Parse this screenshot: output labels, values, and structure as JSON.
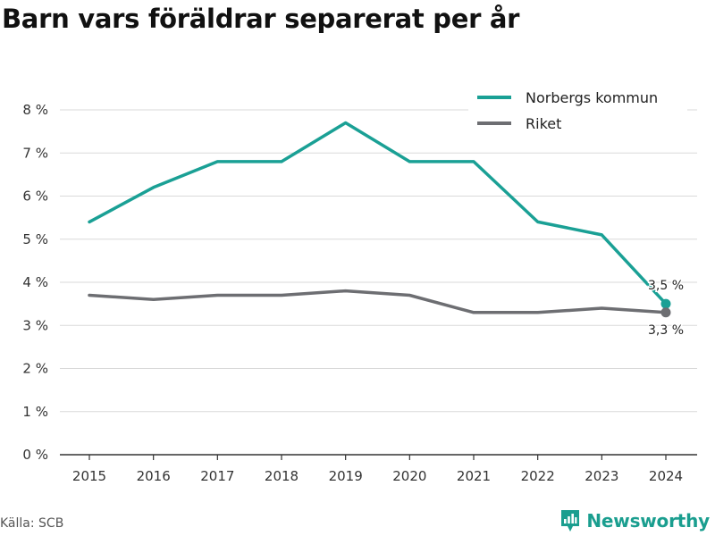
{
  "colors": {
    "accent": "#1aa095",
    "secondary": "#6d6e72",
    "grid": "#d9d9d9",
    "brand": "#1a9e8f"
  },
  "chart_data": {
    "type": "line",
    "title": "Barn vars föräldrar separerat per år",
    "xlabel": "",
    "ylabel": "",
    "x": [
      "2015",
      "2016",
      "2017",
      "2018",
      "2019",
      "2020",
      "2021",
      "2022",
      "2023",
      "2024"
    ],
    "ylim": [
      0,
      8
    ],
    "yticks": [
      0,
      1,
      2,
      3,
      4,
      5,
      6,
      7,
      8
    ],
    "ytick_labels": [
      "0 %",
      "1 %",
      "2 %",
      "3 %",
      "4 %",
      "5 %",
      "6 %",
      "7 %",
      "8 %"
    ],
    "grid": true,
    "legend_position": "top-right",
    "series": [
      {
        "name": "Norbergs kommun",
        "color": "#1aa095",
        "values": [
          5.4,
          6.2,
          6.8,
          6.8,
          7.7,
          6.8,
          6.8,
          5.4,
          5.1,
          3.5
        ],
        "end_label": "3,5 %"
      },
      {
        "name": "Riket",
        "color": "#6d6e72",
        "values": [
          3.7,
          3.6,
          3.7,
          3.7,
          3.8,
          3.7,
          3.3,
          3.3,
          3.4,
          3.3
        ],
        "end_label": "3,3 %"
      }
    ]
  },
  "source": "Källa: SCB",
  "brand": {
    "name": "Newsworthy",
    "icon": "newsworthy-logo-icon"
  }
}
